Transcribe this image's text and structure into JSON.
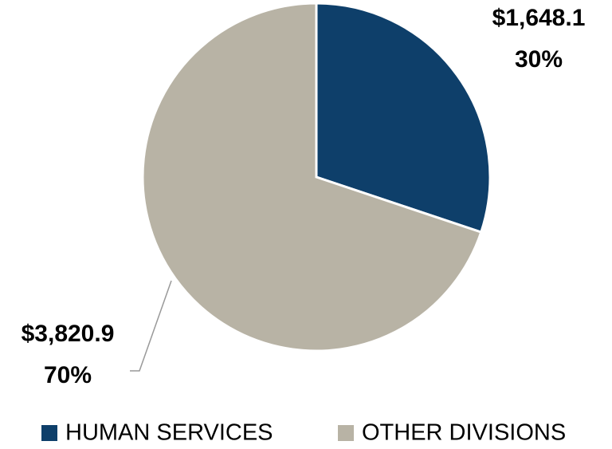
{
  "chart_data": {
    "type": "pie",
    "categories": [
      "HUMAN SERVICES",
      "OTHER DIVISIONS"
    ],
    "values": [
      1648.1,
      3820.9
    ],
    "value_labels": [
      "$1,648.1",
      "$3,820.9"
    ],
    "percents": [
      30,
      70
    ],
    "percent_labels": [
      "30%",
      "70%"
    ],
    "colors": [
      "#0e3f6a",
      "#b8b3a5"
    ],
    "legend": "bottom"
  }
}
